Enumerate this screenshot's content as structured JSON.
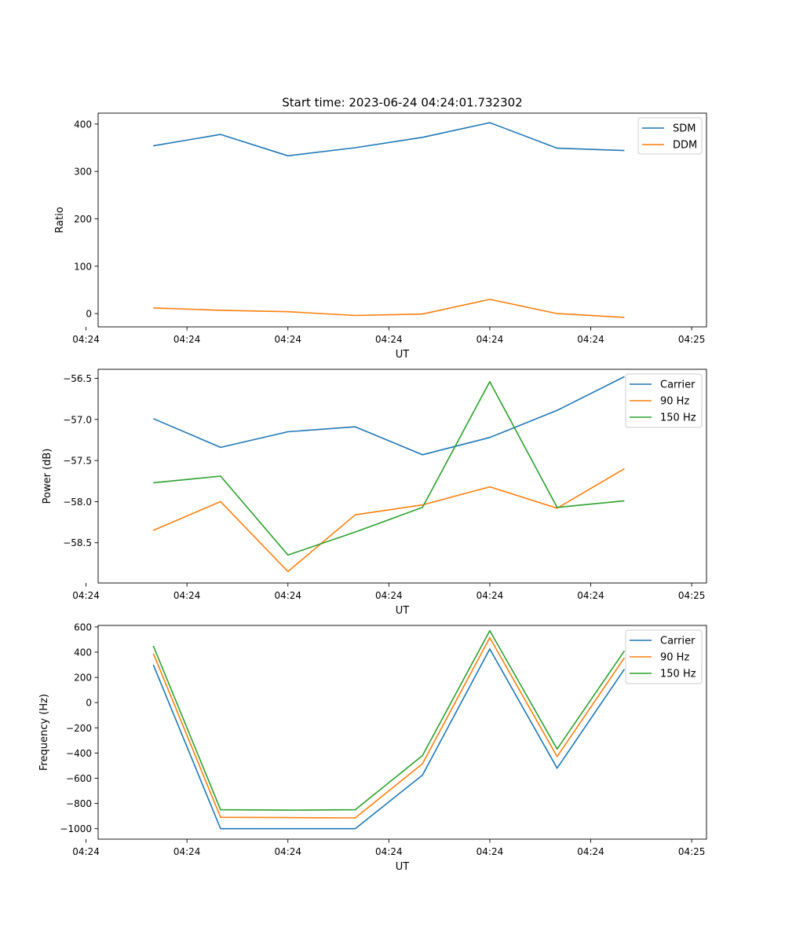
{
  "figure": {
    "suptitle": "Start time: 2023-06-24 04:24:01.732302"
  },
  "colors": {
    "blue": "#1f77b4",
    "orange": "#ff7f0e",
    "green": "#2ca02c"
  },
  "chart_data": [
    {
      "type": "line",
      "title": "Start time: 2023-06-24 04:24:01.732302",
      "xlabel": "UT",
      "ylabel": "Ratio",
      "x": [
        1,
        2,
        3,
        4,
        5,
        6,
        7,
        8
      ],
      "xlim": [
        0.18,
        9.22
      ],
      "x_ticks": [
        0,
        1.5,
        3,
        4.5,
        6,
        7.5,
        9
      ],
      "x_tick_labels": [
        "04:24",
        "04:24",
        "04:24",
        "04:24",
        "04:24",
        "04:24",
        "04:25"
      ],
      "ylim": [
        -28,
        423
      ],
      "y_ticks": [
        0,
        100,
        200,
        300,
        400
      ],
      "y_tick_labels": [
        "0",
        "100",
        "200",
        "300",
        "400"
      ],
      "legend": "top-right",
      "series": [
        {
          "name": "SDM",
          "color": "#1f77b4",
          "values": [
            354,
            378,
            333,
            350,
            372,
            403,
            349,
            344
          ]
        },
        {
          "name": "DDM",
          "color": "#ff7f0e",
          "values": [
            12,
            7,
            4,
            -4,
            -1,
            30,
            0,
            -8
          ]
        }
      ]
    },
    {
      "type": "line",
      "xlabel": "UT",
      "ylabel": "Power (dB)",
      "x": [
        1,
        2,
        3,
        4,
        5,
        6,
        7,
        8
      ],
      "xlim": [
        0.18,
        9.22
      ],
      "x_ticks": [
        0,
        1.5,
        3,
        4.5,
        6,
        7.5,
        9
      ],
      "x_tick_labels": [
        "04:24",
        "04:24",
        "04:24",
        "04:24",
        "04:24",
        "04:24",
        "04:25"
      ],
      "ylim": [
        -58.99,
        -56.39
      ],
      "y_ticks": [
        -56.5,
        -57.0,
        -57.5,
        -58.0,
        -58.5
      ],
      "y_tick_labels": [
        "−56.5",
        "−57.0",
        "−57.5",
        "−58.0",
        "−58.5"
      ],
      "legend": "top-right",
      "series": [
        {
          "name": "Carrier",
          "color": "#1f77b4",
          "values": [
            -56.99,
            -57.34,
            -57.15,
            -57.09,
            -57.43,
            -57.22,
            -56.89,
            -56.48
          ]
        },
        {
          "name": "90 Hz",
          "color": "#ff7f0e",
          "values": [
            -58.35,
            -58.0,
            -58.85,
            -58.16,
            -58.04,
            -57.82,
            -58.08,
            -57.6
          ]
        },
        {
          "name": "150 Hz",
          "color": "#2ca02c",
          "values": [
            -57.77,
            -57.69,
            -58.65,
            -58.37,
            -58.07,
            -56.54,
            -58.07,
            -57.99
          ]
        }
      ]
    },
    {
      "type": "line",
      "xlabel": "UT",
      "ylabel": "Frequency (Hz)",
      "x": [
        1,
        2,
        3,
        4,
        5,
        6,
        7,
        8
      ],
      "xlim": [
        0.18,
        9.22
      ],
      "x_ticks": [
        0,
        1.5,
        3,
        4.5,
        6,
        7.5,
        9
      ],
      "x_tick_labels": [
        "04:24",
        "04:24",
        "04:24",
        "04:24",
        "04:24",
        "04:24",
        "04:25"
      ],
      "ylim": [
        -1083,
        612
      ],
      "y_ticks": [
        600,
        400,
        200,
        0,
        -200,
        -400,
        -600,
        -800,
        -1000
      ],
      "y_tick_labels": [
        "600",
        "400",
        "200",
        "0",
        "−200",
        "−400",
        "−600",
        "−800",
        "−1000"
      ],
      "legend": "top-right",
      "series": [
        {
          "name": "Carrier",
          "color": "#1f77b4",
          "values": [
            300,
            -1000,
            -1000,
            -1000,
            -575,
            425,
            -520,
            265
          ]
        },
        {
          "name": "90 Hz",
          "color": "#ff7f0e",
          "values": [
            390,
            -910,
            -912,
            -915,
            -485,
            515,
            -428,
            355
          ]
        },
        {
          "name": "150 Hz",
          "color": "#2ca02c",
          "values": [
            450,
            -850,
            -853,
            -850,
            -420,
            570,
            -368,
            410
          ]
        }
      ]
    }
  ]
}
